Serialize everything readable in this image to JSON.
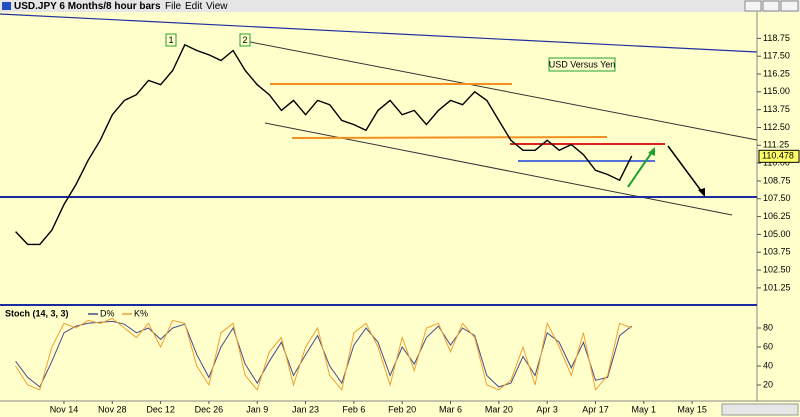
{
  "window": {
    "title": "USD.JPY  6 Months/8 hour bars",
    "menu": [
      "File",
      "Edit",
      "View"
    ]
  },
  "chart_data": [
    {
      "type": "line",
      "annotations": [
        "1",
        "2",
        "USD Versus Yen"
      ],
      "last_price": 110.478,
      "categories": [
        null,
        null,
        null,
        null,
        "Nov 14",
        null,
        null,
        null,
        "Nov 28",
        null,
        null,
        null,
        "Dec 12",
        null,
        null,
        null,
        "Dec 26",
        null,
        null,
        null,
        "Jan 9",
        null,
        null,
        null,
        "Jan 23",
        null,
        null,
        null,
        "Feb 6",
        null,
        null,
        null,
        "Feb 20",
        null,
        null,
        null,
        "Mar 6",
        null,
        null,
        null,
        "Mar 20",
        null,
        null,
        null,
        "Apr 3",
        null,
        null,
        null,
        "Apr 17",
        null,
        null,
        null,
        "May 1",
        null,
        null,
        null,
        "May 15",
        null,
        null,
        null,
        null,
        null
      ],
      "series": [
        {
          "name": "USD.JPY",
          "color": "#000000",
          "values": [
            105.2,
            104.3,
            104.3,
            105.3,
            107.1,
            108.5,
            110.2,
            111.6,
            113.4,
            114.4,
            114.8,
            115.8,
            115.5,
            116.5,
            118.3,
            117.9,
            117.6,
            117.2,
            117.9,
            116.5,
            115.5,
            114.8,
            113.7,
            114.4,
            113.4,
            114.4,
            114.1,
            113.0,
            112.7,
            112.3,
            113.7,
            114.4,
            113.4,
            113.7,
            112.7,
            113.7,
            114.4,
            114.1,
            115.0,
            114.4,
            113.0,
            111.6,
            110.9,
            110.9,
            111.6,
            110.9,
            111.3,
            110.6,
            109.5,
            109.2,
            108.8,
            110.5,
            null,
            null,
            null,
            null,
            null,
            null,
            null,
            null,
            null,
            null
          ]
        }
      ],
      "ylim": [
        100.4,
        120.6
      ],
      "yticks": [
        101.25,
        {
          "value": 102.5,
          "label": "102.50"
        },
        103.75,
        {
          "value": 105,
          "label": "105.00"
        },
        106.25,
        {
          "value": 107.5,
          "label": "107.50"
        },
        108.75,
        {
          "value": 110,
          "label": "110.00"
        },
        111.25,
        {
          "value": 112.5,
          "label": "112.50"
        },
        113.75,
        {
          "value": 115,
          "label": "115.00"
        },
        116.25,
        {
          "value": 117.5,
          "label": "117.50"
        },
        118.75
      ]
    },
    {
      "type": "line",
      "title": "Stoch  (14, 3, 3)",
      "series": [
        {
          "name": "D%",
          "color": "#4a4a8c",
          "values": [
            45,
            28,
            18,
            45,
            75,
            82,
            85,
            86,
            87,
            84,
            75,
            80,
            68,
            80,
            84,
            52,
            28,
            60,
            80,
            42,
            22,
            45,
            65,
            30,
            52,
            72,
            40,
            22,
            62,
            80,
            65,
            30,
            60,
            42,
            70,
            82,
            62,
            80,
            72,
            30,
            18,
            22,
            50,
            30,
            75,
            65,
            38,
            65,
            25,
            28,
            72,
            82,
            null,
            null,
            null,
            null,
            null,
            null,
            null,
            null,
            null,
            null
          ]
        },
        {
          "name": "K%",
          "color": "#f0a030",
          "values": [
            40,
            20,
            15,
            60,
            85,
            80,
            88,
            85,
            90,
            80,
            70,
            85,
            60,
            88,
            85,
            40,
            20,
            75,
            85,
            30,
            15,
            55,
            70,
            20,
            60,
            80,
            30,
            15,
            75,
            85,
            60,
            20,
            70,
            35,
            80,
            85,
            55,
            85,
            70,
            20,
            15,
            25,
            60,
            20,
            85,
            60,
            30,
            75,
            15,
            30,
            85,
            80,
            null,
            null,
            null,
            null,
            null,
            null,
            null,
            null,
            null,
            null
          ]
        }
      ],
      "ylim": [
        0,
        100
      ],
      "yticks": [
        20,
        40,
        60,
        80
      ]
    }
  ]
}
